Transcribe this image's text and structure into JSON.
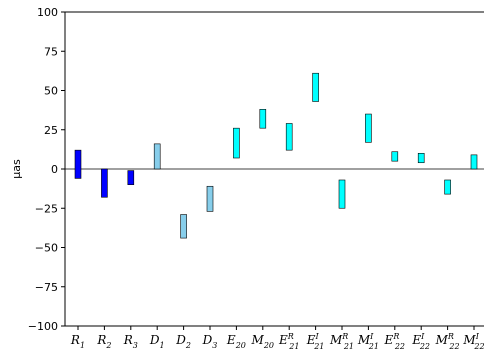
{
  "chart_data": {
    "type": "bar",
    "style": "floating-range",
    "title": "",
    "xlabel": "",
    "ylabel": "μas",
    "ylim": [
      -100,
      100
    ],
    "yticks": [
      -100,
      -75,
      -50,
      -25,
      0,
      25,
      50,
      75,
      100
    ],
    "ytick_labels": [
      "−100",
      "−75",
      "−50",
      "−25",
      "0",
      "25",
      "50",
      "75",
      "100"
    ],
    "grid": false,
    "zero_line": true,
    "categories": [
      {
        "base": "R",
        "sub": "1",
        "sup": ""
      },
      {
        "base": "R",
        "sub": "2",
        "sup": ""
      },
      {
        "base": "R",
        "sub": "3",
        "sup": ""
      },
      {
        "base": "D",
        "sub": "1",
        "sup": ""
      },
      {
        "base": "D",
        "sub": "2",
        "sup": ""
      },
      {
        "base": "D",
        "sub": "3",
        "sup": ""
      },
      {
        "base": "E",
        "sub": "20",
        "sup": ""
      },
      {
        "base": "M",
        "sub": "20",
        "sup": ""
      },
      {
        "base": "E",
        "sub": "21",
        "sup": "R"
      },
      {
        "base": "E",
        "sub": "21",
        "sup": "I"
      },
      {
        "base": "M",
        "sub": "21",
        "sup": "R"
      },
      {
        "base": "M",
        "sub": "21",
        "sup": "I"
      },
      {
        "base": "E",
        "sub": "22",
        "sup": "R"
      },
      {
        "base": "E",
        "sub": "22",
        "sup": "I"
      },
      {
        "base": "M",
        "sub": "22",
        "sup": "R"
      },
      {
        "base": "M",
        "sub": "22",
        "sup": "I"
      }
    ],
    "ranges": [
      [
        -6,
        12
      ],
      [
        -18,
        0
      ],
      [
        -10,
        -1
      ],
      [
        0,
        16
      ],
      [
        -44,
        -29
      ],
      [
        -27,
        -11
      ],
      [
        7,
        26
      ],
      [
        26,
        38
      ],
      [
        12,
        29
      ],
      [
        43,
        61
      ],
      [
        -25,
        -7
      ],
      [
        17,
        35
      ],
      [
        5,
        11
      ],
      [
        4,
        10
      ],
      [
        -16,
        -7
      ],
      [
        0,
        9
      ]
    ],
    "colors": [
      "#0000ff",
      "#0000ff",
      "#0000ff",
      "#87ceeb",
      "#87ceeb",
      "#87ceeb",
      "#00ffff",
      "#00ffff",
      "#00ffff",
      "#00ffff",
      "#00ffff",
      "#00ffff",
      "#00ffff",
      "#00ffff",
      "#00ffff",
      "#00ffff"
    ],
    "edge_color": "#000000"
  }
}
